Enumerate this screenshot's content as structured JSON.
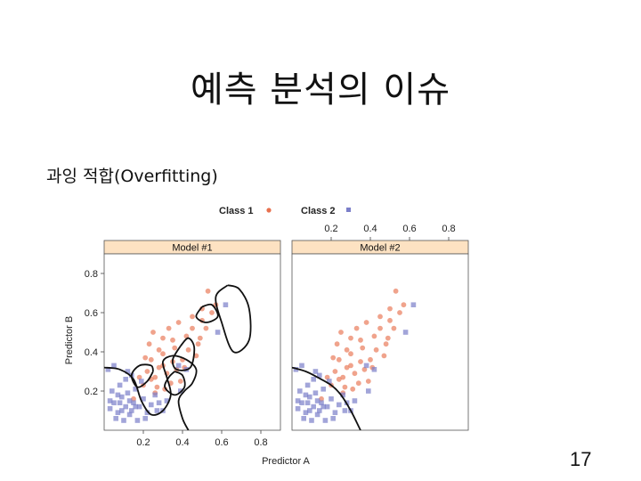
{
  "slide": {
    "title": "예측 분석의 이슈",
    "subtitle": "과잉 적합(Overfitting)",
    "page_number": "17"
  },
  "chart_data": {
    "type": "scatter",
    "xlabel": "Predictor A",
    "ylabel": "Predictor B",
    "xlim": [
      0.0,
      0.9
    ],
    "ylim": [
      0.0,
      0.9
    ],
    "xticks": [
      0.2,
      0.4,
      0.6,
      0.8
    ],
    "yticks": [
      0.2,
      0.4,
      0.6,
      0.8
    ],
    "xtick_labels": [
      "0.2",
      "0.4",
      "0.6",
      "0.8"
    ],
    "ytick_labels": [
      "0.2",
      "0.4",
      "0.6",
      "0.8"
    ],
    "legend_position": "top",
    "grid": false,
    "panels": [
      {
        "name": "Model #1",
        "boundary": "overfit"
      },
      {
        "name": "Model #2",
        "boundary": "smooth"
      }
    ],
    "series": [
      {
        "name": "Class 1",
        "marker": "circle",
        "color": "#e8714f",
        "points": [
          [
            0.2,
            0.23
          ],
          [
            0.22,
            0.3
          ],
          [
            0.24,
            0.36
          ],
          [
            0.26,
            0.27
          ],
          [
            0.28,
            0.41
          ],
          [
            0.3,
            0.33
          ],
          [
            0.33,
            0.52
          ],
          [
            0.35,
            0.46
          ],
          [
            0.38,
            0.55
          ],
          [
            0.4,
            0.36
          ],
          [
            0.42,
            0.48
          ],
          [
            0.45,
            0.58
          ],
          [
            0.48,
            0.44
          ],
          [
            0.5,
            0.62
          ],
          [
            0.52,
            0.52
          ],
          [
            0.55,
            0.6
          ],
          [
            0.47,
            0.38
          ],
          [
            0.25,
            0.5
          ],
          [
            0.3,
            0.47
          ],
          [
            0.36,
            0.42
          ],
          [
            0.43,
            0.41
          ],
          [
            0.53,
            0.71
          ],
          [
            0.5,
            0.56
          ],
          [
            0.18,
            0.27
          ],
          [
            0.21,
            0.37
          ],
          [
            0.27,
            0.22
          ],
          [
            0.32,
            0.29
          ],
          [
            0.37,
            0.31
          ],
          [
            0.41,
            0.32
          ],
          [
            0.23,
            0.44
          ],
          [
            0.3,
            0.39
          ],
          [
            0.57,
            0.64
          ],
          [
            0.45,
            0.52
          ],
          [
            0.39,
            0.25
          ],
          [
            0.34,
            0.24
          ],
          [
            0.28,
            0.32
          ],
          [
            0.26,
            0.19
          ],
          [
            0.31,
            0.21
          ],
          [
            0.35,
            0.35
          ],
          [
            0.49,
            0.47
          ],
          [
            0.15,
            0.16
          ],
          [
            0.24,
            0.26
          ]
        ]
      },
      {
        "name": "Class 2",
        "marker": "square",
        "color": "#7b7fc9",
        "points": [
          [
            0.03,
            0.11
          ],
          [
            0.05,
            0.14
          ],
          [
            0.07,
            0.09
          ],
          [
            0.09,
            0.17
          ],
          [
            0.11,
            0.12
          ],
          [
            0.13,
            0.08
          ],
          [
            0.15,
            0.14
          ],
          [
            0.04,
            0.2
          ],
          [
            0.08,
            0.23
          ],
          [
            0.12,
            0.19
          ],
          [
            0.06,
            0.06
          ],
          [
            0.1,
            0.05
          ],
          [
            0.14,
            0.1
          ],
          [
            0.16,
            0.21
          ],
          [
            0.18,
            0.12
          ],
          [
            0.2,
            0.16
          ],
          [
            0.22,
            0.09
          ],
          [
            0.03,
            0.15
          ],
          [
            0.07,
            0.18
          ],
          [
            0.11,
            0.26
          ],
          [
            0.02,
            0.31
          ],
          [
            0.05,
            0.33
          ],
          [
            0.17,
            0.05
          ],
          [
            0.21,
            0.06
          ],
          [
            0.24,
            0.13
          ],
          [
            0.26,
            0.18
          ],
          [
            0.28,
            0.14
          ],
          [
            0.3,
            0.1
          ],
          [
            0.19,
            0.25
          ],
          [
            0.09,
            0.1
          ],
          [
            0.13,
            0.15
          ],
          [
            0.12,
            0.3
          ],
          [
            0.08,
            0.14
          ],
          [
            0.16,
            0.12
          ],
          [
            0.27,
            0.1
          ],
          [
            0.32,
            0.15
          ],
          [
            0.39,
            0.2
          ],
          [
            0.42,
            0.31
          ],
          [
            0.62,
            0.64
          ],
          [
            0.58,
            0.5
          ],
          [
            0.38,
            0.33
          ],
          [
            0.14,
            0.28
          ]
        ]
      }
    ]
  }
}
